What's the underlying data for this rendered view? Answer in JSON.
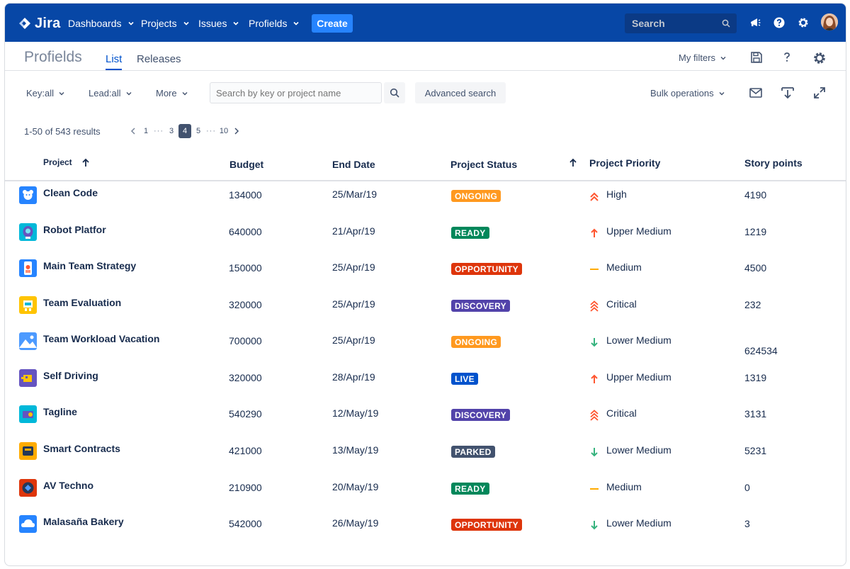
{
  "nav": {
    "logo": "Jira",
    "items": [
      "Dashboards",
      "Projects",
      "Issues",
      "Profields"
    ],
    "create": "Create",
    "search_placeholder": "Search"
  },
  "subheader": {
    "title": "Profields",
    "tabs": [
      "List",
      "Releases"
    ],
    "my_filters": "My filters"
  },
  "filters": {
    "key": "Key:all",
    "lead": "Lead:all",
    "more": "More",
    "search_placeholder": "Search by key or project name",
    "advanced": "Advanced search",
    "bulk": "Bulk operations"
  },
  "pagination": {
    "results": "1-50 of 543 results",
    "pages": [
      "1",
      "3",
      "4",
      "5",
      "10"
    ],
    "ellipsis": "···",
    "current": "4"
  },
  "table": {
    "columns": {
      "project": "Project",
      "budget": "Budget",
      "end_date": "End Date",
      "status": "Project Status",
      "priority": "Project Priority",
      "story_points": "Story points"
    },
    "rows": [
      {
        "name": "Clean Code",
        "budget": "134000",
        "end_date": "25/Mar/19",
        "status": "ONGOING",
        "priority": "High",
        "points": "4190"
      },
      {
        "name": "Robot Platfor",
        "budget": "640000",
        "end_date": "21/Apr/19",
        "status": "READY",
        "priority": "Upper Medium",
        "points": "1219"
      },
      {
        "name": "Main Team Strategy",
        "budget": "150000",
        "end_date": "25/Apr/19",
        "status": "OPPORTUNITY",
        "priority": "Medium",
        "points": "4500"
      },
      {
        "name": "Team Evaluation",
        "budget": "320000",
        "end_date": "25/Apr/19",
        "status": "DISCOVERY",
        "priority": "Critical",
        "points": "232"
      },
      {
        "name": "Team Workload Vacation",
        "budget": "700000",
        "end_date": "25/Apr/19",
        "status": "ONGOING",
        "priority": "Lower Medium",
        "points": "624534"
      },
      {
        "name": "Self Driving",
        "budget": "320000",
        "end_date": "28/Apr/19",
        "status": "LIVE",
        "priority": "Upper Medium",
        "points": "1319"
      },
      {
        "name": "Tagline",
        "budget": "540290",
        "end_date": "12/May/19",
        "status": "DISCOVERY",
        "priority": "Critical",
        "points": "3131"
      },
      {
        "name": "Smart Contracts",
        "budget": "421000",
        "end_date": "13/May/19",
        "status": "PARKED",
        "priority": "Lower Medium",
        "points": "5231"
      },
      {
        "name": "AV Techno",
        "budget": "210900",
        "end_date": "20/May/19",
        "status": "READY",
        "priority": "Medium",
        "points": "0"
      },
      {
        "name": "Malasaña Bakery",
        "budget": "542000",
        "end_date": "26/May/19",
        "status": "OPPORTUNITY",
        "priority": "Lower Medium",
        "points": "3"
      }
    ]
  },
  "status_colors": {
    "ONGOING": "#ff991f",
    "READY": "#00875a",
    "OPPORTUNITY": "#de350b",
    "DISCOVERY": "#5243aa",
    "LIVE": "#0052cc",
    "PARKED": "#42526e"
  },
  "priority_icons": {
    "High": "double-chevron-up-icon",
    "Upper Medium": "arrow-up-icon",
    "Medium": "dash-icon",
    "Critical": "triple-chevron-up-icon",
    "Lower Medium": "arrow-down-icon"
  }
}
